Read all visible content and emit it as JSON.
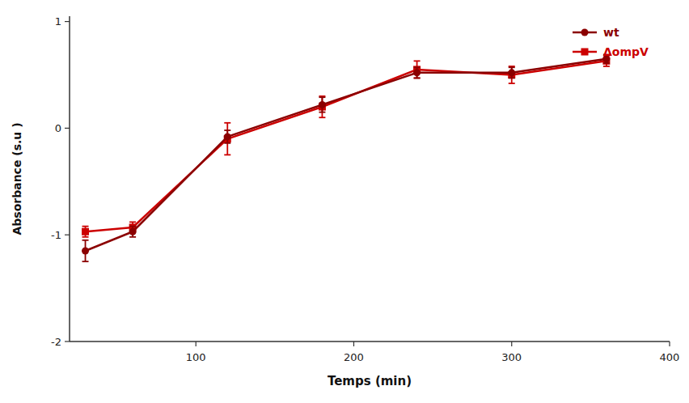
{
  "chart_data": {
    "type": "line",
    "x": [
      30,
      60,
      120,
      180,
      240,
      300,
      360
    ],
    "series": [
      {
        "name": "wt",
        "color": "#8B0000",
        "marker": "circle",
        "values": [
          -1.15,
          -0.97,
          -0.08,
          0.22,
          0.52,
          0.52,
          0.65
        ],
        "errors": [
          0.1,
          0.05,
          0.06,
          0.07,
          0.05,
          0.05,
          0.04
        ]
      },
      {
        "name": "ΔompV",
        "color": "#CC0000",
        "marker": "square",
        "values": [
          -0.97,
          -0.93,
          -0.1,
          0.2,
          0.55,
          0.5,
          0.63
        ],
        "errors": [
          0.05,
          0.05,
          0.15,
          0.1,
          0.08,
          0.08,
          0.05
        ]
      }
    ],
    "x_label": "Temps (min)",
    "y_label": "Absorbance (s.u )",
    "xlim": [
      20,
      400
    ],
    "ylim": [
      -2.0,
      1.05
    ],
    "xticks": [
      100,
      200,
      300,
      400
    ],
    "yticks": [
      -2,
      -1,
      0,
      1
    ],
    "grid": false,
    "legend": "upper right"
  }
}
